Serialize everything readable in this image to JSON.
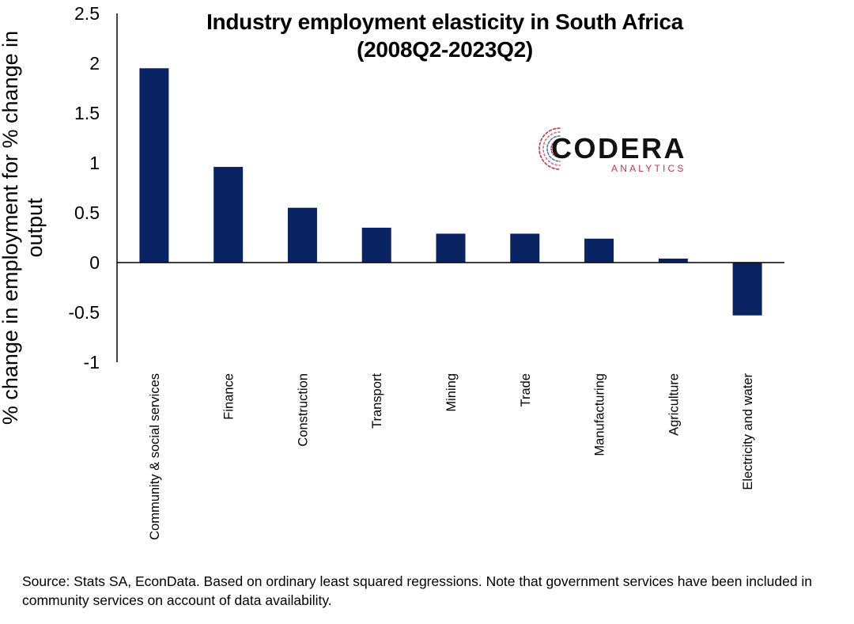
{
  "chart_data": {
    "type": "bar",
    "title_lines": [
      "Industry employment elasticity in South Africa",
      "(2008Q2-2023Q2)"
    ],
    "xlabel": "",
    "ylabel": "% change in employment for % change in output",
    "ylim": [
      -1,
      2.5
    ],
    "yticks": [
      "2.5",
      "2",
      "1.5",
      "1",
      "0.5",
      "0",
      "-0.5",
      "-1"
    ],
    "ytick_values": [
      2.5,
      2,
      1.5,
      1,
      0.5,
      0,
      -0.5,
      -1
    ],
    "categories": [
      "Community & social services",
      "Finance",
      "Construction",
      "Transport",
      "Mining",
      "Trade",
      "Manufacturing",
      "Agriculture",
      "Electricity and water"
    ],
    "values": [
      1.95,
      0.96,
      0.55,
      0.35,
      0.29,
      0.29,
      0.24,
      0.04,
      -0.53
    ],
    "grid": false,
    "legend": "none",
    "bar_color": "#0a2463"
  },
  "source_note": "Source: Stats SA, EconData. Based on ordinary least squared regressions. Note that government services have been included in community services on account of data availability.",
  "logo": {
    "name": "CODERA",
    "subtitle": "ANALYTICS",
    "colors": {
      "red": "#c8324a",
      "blue": "#4a7fb5",
      "text": "#111111"
    }
  }
}
